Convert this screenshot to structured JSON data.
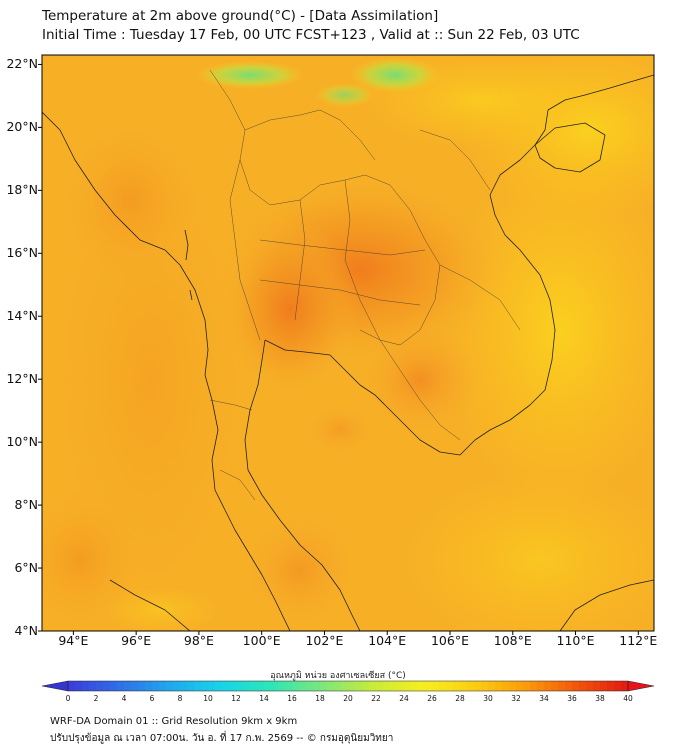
{
  "title_line1": "Temperature at 2m above ground(°C) - [Data Assimilation]",
  "title_line2": "Initial Time : Tuesday 17 Feb, 00 UTC FCST+123 , Valid at :: Sun 22 Feb, 03 UTC",
  "map": {
    "lon_range": [
      93,
      112.5
    ],
    "lat_range": [
      4,
      22.3
    ],
    "lat_labels": [
      {
        "lat": 22,
        "text": "22°N"
      },
      {
        "lat": 20,
        "text": "20°N"
      },
      {
        "lat": 18,
        "text": "18°N"
      },
      {
        "lat": 16,
        "text": "16°N"
      },
      {
        "lat": 14,
        "text": "14°N"
      },
      {
        "lat": 12,
        "text": "12°N"
      },
      {
        "lat": 10,
        "text": "10°N"
      },
      {
        "lat": 8,
        "text": "8°N"
      },
      {
        "lat": 6,
        "text": "6°N"
      },
      {
        "lat": 4,
        "text": "4°N"
      }
    ],
    "lon_labels": [
      {
        "lon": 94,
        "text": "94°E"
      },
      {
        "lon": 96,
        "text": "96°E"
      },
      {
        "lon": 98,
        "text": "98°E"
      },
      {
        "lon": 100,
        "text": "100°E"
      },
      {
        "lon": 102,
        "text": "102°E"
      },
      {
        "lon": 104,
        "text": "104°E"
      },
      {
        "lon": 106,
        "text": "106°E"
      },
      {
        "lon": 108,
        "text": "108°E"
      },
      {
        "lon": 110,
        "text": "110°E"
      },
      {
        "lon": 112,
        "text": "112°E"
      }
    ]
  },
  "colorbar": {
    "title": "อุณหภูมิ หน่วย องศาเซลเซียส (°C)",
    "min": 0,
    "max": 40,
    "ticks": [
      "0",
      "2",
      "4",
      "6",
      "8",
      "10",
      "12",
      "14",
      "16",
      "18",
      "20",
      "22",
      "24",
      "26",
      "28",
      "30",
      "32",
      "34",
      "36",
      "38",
      "40"
    ],
    "colors": [
      "#3b3bd8",
      "#2f6fe6",
      "#1fa8ee",
      "#17d4e8",
      "#2ee6b4",
      "#7ee67a",
      "#c8ec38",
      "#f7ee1e",
      "#fbcd12",
      "#fb9a0a",
      "#f2550a",
      "#e01a12"
    ]
  },
  "footer_line1": "WRF-DA Domain 01 :: Grid Resolution 9km x 9km",
  "footer_line2": "ปรับปรุงข้อมูล ณ เวลา 07:00น. วัน อ. ที่ 17 ก.พ. 2569 -- © กรมอุตุนิยมวิทยา"
}
